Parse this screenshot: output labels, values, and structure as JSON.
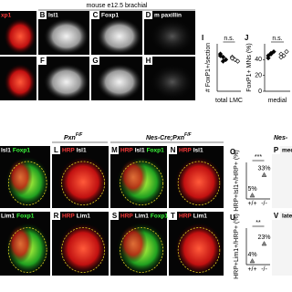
{
  "header": {
    "title": "mouse e12.5 brachial"
  },
  "sections": [
    {
      "base": "Pxn",
      "sup": "F/F"
    },
    {
      "base": "Nes-Cre;Pxn",
      "sup": "F/F"
    },
    {
      "base": "Nes-"
    }
  ],
  "panels": [
    {
      "stains": [
        {
          "text": "xp1",
          "color": "#ff3b3b"
        }
      ]
    },
    {
      "label": "B",
      "stains": [
        {
          "text": "Isl1",
          "color": "#ffffff"
        }
      ]
    },
    {
      "label": "C",
      "stains": [
        {
          "text": "Foxp1",
          "color": "#ffffff"
        }
      ]
    },
    {
      "label": "D",
      "stains": [
        {
          "text": "m paxillin",
          "color": "#ffffff"
        }
      ]
    },
    {
      "stains": []
    },
    {
      "label": "F",
      "stains": []
    },
    {
      "label": "G",
      "stains": []
    },
    {
      "label": "H",
      "stains": []
    },
    {
      "stains": [
        {
          "text": "Isl1",
          "color": "#ffffff"
        },
        {
          "text": "Foxp1",
          "color": "#3cff3c"
        }
      ]
    },
    {
      "label": "L",
      "stains": [
        {
          "text": "HRP",
          "color": "#ff3b3b"
        },
        {
          "text": "Isl1",
          "color": "#ffffff"
        }
      ]
    },
    {
      "label": "M",
      "stains": [
        {
          "text": "HRP",
          "color": "#ff3b3b"
        },
        {
          "text": "Isl1",
          "color": "#ffffff"
        },
        {
          "text": "Foxp1",
          "color": "#3cff3c"
        }
      ]
    },
    {
      "label": "N",
      "stains": [
        {
          "text": "HRP",
          "color": "#ff3b3b"
        },
        {
          "text": "Isl1",
          "color": "#ffffff"
        }
      ]
    },
    {
      "label": "P",
      "stains": [
        {
          "text": "med",
          "color": "#000000"
        }
      ]
    },
    {
      "stains": [
        {
          "text": "Lim1",
          "color": "#ffffff"
        },
        {
          "text": "Foxp1",
          "color": "#3cff3c"
        }
      ]
    },
    {
      "label": "R",
      "stains": [
        {
          "text": "HRP",
          "color": "#ff3b3b"
        },
        {
          "text": "Lim1",
          "color": "#ffffff"
        }
      ]
    },
    {
      "label": "S",
      "stains": [
        {
          "text": "HRP",
          "color": "#ff3b3b"
        },
        {
          "text": "Lim1",
          "color": "#ffffff"
        },
        {
          "text": "Foxp1",
          "color": "#3cff3c"
        }
      ]
    },
    {
      "label": "T",
      "stains": [
        {
          "text": "HRP",
          "color": "#ff3b3b"
        },
        {
          "text": "Lim1",
          "color": "#ffffff"
        }
      ]
    },
    {
      "label": "V",
      "stains": [
        {
          "text": "late",
          "color": "#000000"
        },
        {
          "text": "HRP",
          "color": "#ff3b3b"
        }
      ]
    }
  ],
  "charts": [
    {
      "label": "I",
      "ylabel": "# FoxP1+/section",
      "xlabel": "total LMC",
      "sig": "n.s.",
      "ylim": [
        0,
        150
      ],
      "groups": [
        {
          "values": [
            118,
            108,
            100,
            112,
            95
          ],
          "filled": true
        },
        {
          "values": [
            108,
            100,
            95,
            104
          ],
          "filled": false
        }
      ]
    },
    {
      "label": "J",
      "ylabel": "FoxP1+ MNs (%)",
      "xlabel": "medial",
      "sig": "n.s.",
      "ylim": [
        0,
        60
      ],
      "yticks": [
        0,
        20,
        40
      ],
      "groups": [
        {
          "values": [
            45,
            48,
            50,
            42,
            47
          ],
          "filled": true
        },
        {
          "values": [
            47,
            45,
            50,
            43
          ],
          "filled": false
        }
      ]
    },
    {
      "label": "O",
      "ylabel": "HRP+Isl1+/HRP+ (%)",
      "sig": "***",
      "ylim": [
        0,
        50
      ],
      "categories": [
        "+/+",
        "-/-"
      ],
      "values": [
        5,
        33
      ],
      "value_labels": [
        "5%",
        "33%"
      ]
    },
    {
      "label": "U",
      "ylabel": "HRP+Lim1+/HRP+ (%)",
      "sig": "**",
      "ylim": [
        0,
        40
      ],
      "categories": [
        "+/+",
        "-/-"
      ],
      "values": [
        4,
        23
      ],
      "value_labels": [
        "4%",
        "23%"
      ]
    }
  ]
}
